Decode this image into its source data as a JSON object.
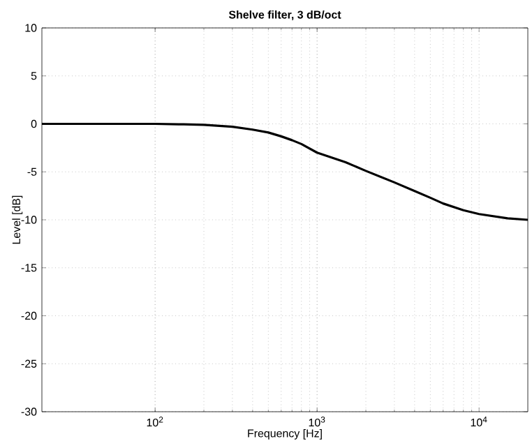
{
  "chart_data": {
    "type": "line",
    "title": "Shelve filter, 3 dB/oct",
    "xlabel": "Frequency [Hz]",
    "ylabel": "Level [dB]",
    "log": "x",
    "grid": true,
    "xlim": [
      20,
      20000
    ],
    "ylim": [
      -30,
      10
    ],
    "xticks": [
      {
        "value": 100,
        "label": "10$^{2}$"
      },
      {
        "value": 1000,
        "label": "10$^{3}$"
      },
      {
        "value": 10000,
        "label": "10$^{4}$"
      }
    ],
    "yticks": [
      -30,
      -25,
      -20,
      -15,
      -10,
      -5,
      0,
      5,
      10
    ],
    "x": [
      20,
      50,
      100,
      150,
      200,
      300,
      400,
      500,
      600,
      700,
      800,
      1000,
      1500,
      2000,
      3000,
      4000,
      5000,
      6000,
      8000,
      10000,
      15000,
      20000
    ],
    "series": [
      {
        "color": "#000000",
        "values": [
          0,
          0,
          0,
          -0.05,
          -0.1,
          -0.3,
          -0.6,
          -0.9,
          -1.3,
          -1.7,
          -2.1,
          -3.0,
          -4.0,
          -4.9,
          -6.1,
          -7.0,
          -7.7,
          -8.3,
          -9.0,
          -9.4,
          -9.85,
          -10
        ]
      }
    ]
  }
}
